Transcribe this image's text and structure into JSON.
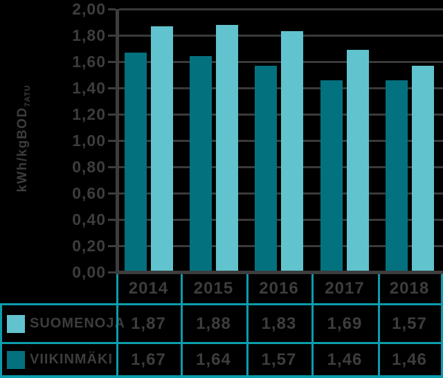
{
  "colors": {
    "background": "#000000",
    "suomenoja": "#61c3cd",
    "viikinmaki": "#04717f",
    "gridline": "#3a3a3a",
    "axis": "#3d3d3d",
    "text": "#3d3d3d",
    "table_border": "#0c9cae"
  },
  "chart_data": {
    "type": "bar",
    "title": "",
    "xlabel": "",
    "ylabel": "kWh/kgBOD7ATU",
    "ylabel_base": "kWh/kgBOD",
    "ylabel_subscript": "7ATU",
    "categories": [
      "2014",
      "2015",
      "2016",
      "2017",
      "2018"
    ],
    "series": [
      {
        "name": "VIIKINMÄKI",
        "color": "#04717f",
        "values": [
          1.67,
          1.64,
          1.57,
          1.46,
          1.46
        ],
        "value_labels": [
          "1,67",
          "1,64",
          "1,57",
          "1,46",
          "1,46"
        ]
      },
      {
        "name": "SUOMENOJA",
        "color": "#61c3cd",
        "values": [
          1.87,
          1.88,
          1.83,
          1.69,
          1.57
        ],
        "value_labels": [
          "1,87",
          "1,88",
          "1,83",
          "1,69",
          "1,57"
        ]
      }
    ],
    "ylim": [
      0,
      2
    ],
    "ytick_step": 0.2,
    "yticklabels": [
      "2,00",
      "1,80",
      "1,60",
      "1,40",
      "1,20",
      "1,00",
      "0,80",
      "0,60",
      "0,40",
      "0,20",
      "0,00"
    ],
    "grid": true,
    "legend_position": "table-rows-left",
    "group_order": "VIIKINMÄKI bar left, SUOMENOJA bar right in each year group",
    "table": {
      "header_row": [
        "2014",
        "2015",
        "2016",
        "2017",
        "2018"
      ],
      "rows": [
        {
          "legend": "SUOMENOJA",
          "swatch_color": "#61c3cd",
          "cells": [
            "1,87",
            "1,88",
            "1,83",
            "1,69",
            "1,57"
          ]
        },
        {
          "legend": "VIIKINMÄKI",
          "swatch_color": "#04717f",
          "cells": [
            "1,67",
            "1,64",
            "1,57",
            "1,46",
            "1,46"
          ]
        }
      ]
    }
  }
}
